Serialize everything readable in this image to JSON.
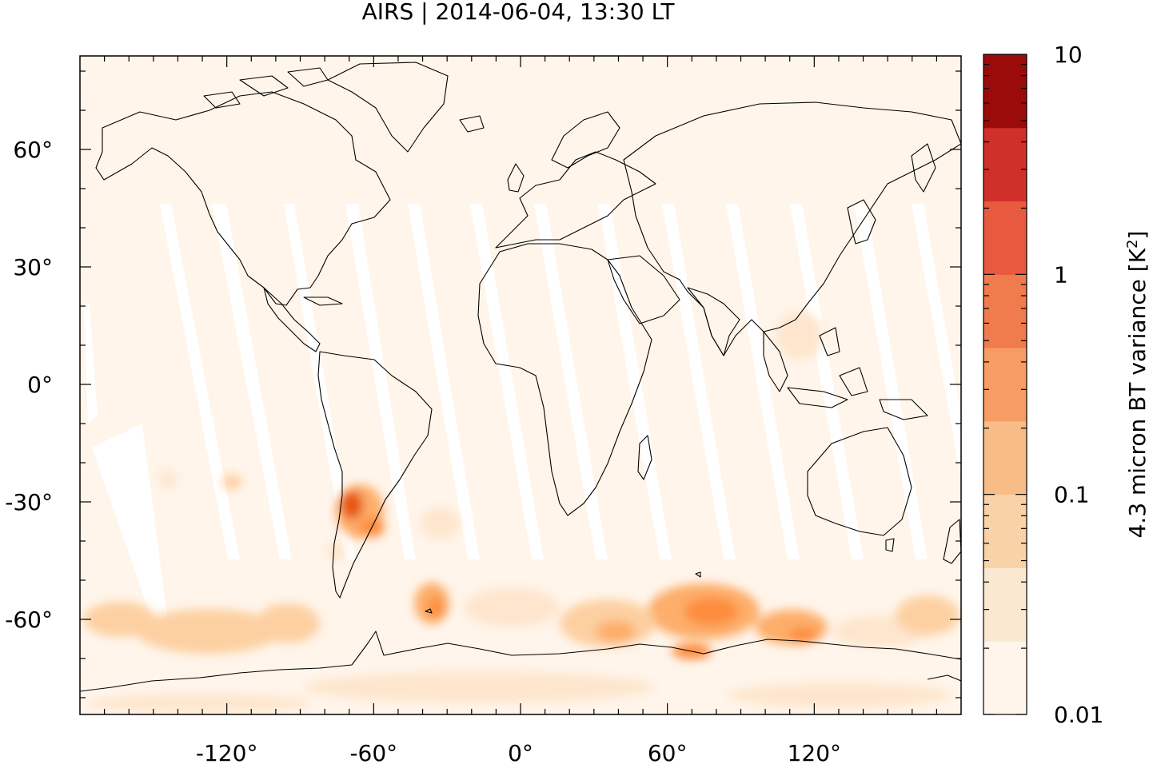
{
  "title": "AIRS | 2014-06-04, 13:30 LT",
  "map": {
    "x_ticks": [
      {
        "lon": -120,
        "label": "-120°"
      },
      {
        "lon": -60,
        "label": "-60°"
      },
      {
        "lon": 0,
        "label": "0°"
      },
      {
        "lon": 60,
        "label": "60°"
      },
      {
        "lon": 120,
        "label": "120°"
      }
    ],
    "y_ticks": [
      {
        "lat": 60,
        "label": "60°"
      },
      {
        "lat": 30,
        "label": "30°"
      },
      {
        "lat": 0,
        "label": "0°"
      },
      {
        "lat": -30,
        "label": "-30°"
      },
      {
        "lat": -60,
        "label": "-60°"
      }
    ],
    "background_color": "#fff5eb",
    "coastline_color": "#000000"
  },
  "colorbar": {
    "label_main": "4.3 micron BT variance [K",
    "label_sup": "2",
    "label_end": "]",
    "scale": "log",
    "ticks": [
      {
        "value": 10,
        "label": "10"
      },
      {
        "value": 1,
        "label": "1"
      },
      {
        "value": 0.1,
        "label": "0.1"
      },
      {
        "value": 0.01,
        "label": "0.01"
      }
    ],
    "colors": [
      "#fff5eb",
      "#fee6ce",
      "#fdd0a2",
      "#fdae6b",
      "#fd8d3c",
      "#f16913",
      "#e6550d",
      "#d94801",
      "#a63603",
      "#7f2704"
    ]
  }
}
